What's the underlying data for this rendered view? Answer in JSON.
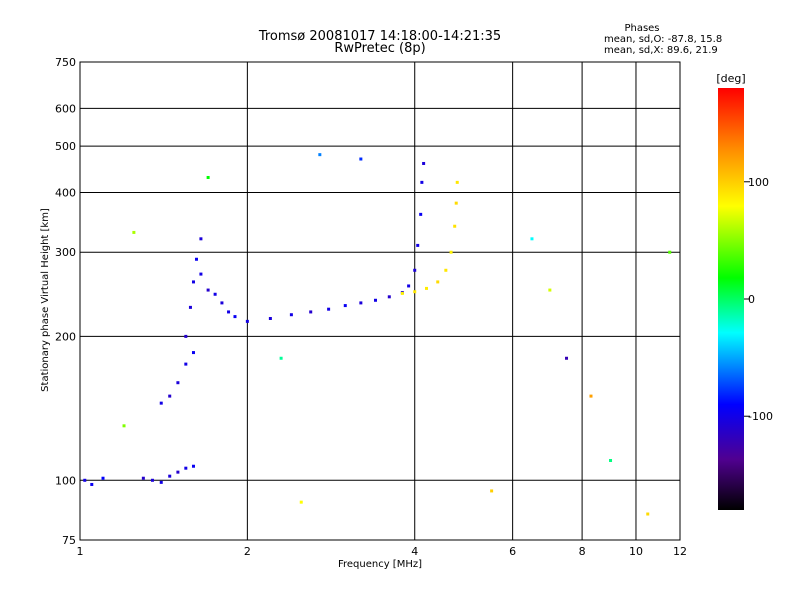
{
  "chart_data": {
    "type": "scatter",
    "title": "Tromsø 20081017 14:18:00-14:21:35",
    "subtitle": "RwPretec (8p)",
    "xlabel": "Frequency [MHz]",
    "ylabel": "Stationary phase Virtual Height [km]",
    "x_scale": "log",
    "y_scale": "log",
    "xlim": [
      1,
      12
    ],
    "ylim": [
      75,
      750
    ],
    "x_ticks": [
      1,
      2,
      4,
      6,
      8,
      10,
      12
    ],
    "y_ticks": [
      75,
      100,
      200,
      300,
      400,
      500,
      600,
      750
    ],
    "grid": true,
    "phase_info": {
      "heading": "Phases",
      "line1": "mean, sd,O: -87.8, 15.8",
      "line2": "mean, sd,X:  89.6, 21.9"
    },
    "colorbar": {
      "unit_label": "[deg]",
      "range": [
        -180,
        180
      ],
      "ticks": [
        100,
        0,
        -100
      ],
      "colors": [
        "#ff0000",
        "#ff8800",
        "#ffff00",
        "#00ff00",
        "#00ffff",
        "#0000ff",
        "#500090",
        "#000000"
      ]
    },
    "series": [
      {
        "color_mode": "phase",
        "points": [
          [
            1.02,
            100,
            -100
          ],
          [
            1.05,
            98,
            -95
          ],
          [
            1.1,
            101,
            -90
          ],
          [
            1.3,
            101,
            -110
          ],
          [
            1.35,
            100,
            -105
          ],
          [
            1.4,
            99,
            -100
          ],
          [
            1.45,
            102,
            -105
          ],
          [
            1.5,
            104,
            -110
          ],
          [
            1.55,
            106,
            -100
          ],
          [
            1.6,
            107,
            -95
          ],
          [
            1.4,
            145,
            -100
          ],
          [
            1.45,
            150,
            -110
          ],
          [
            1.5,
            160,
            -105
          ],
          [
            1.55,
            175,
            -100
          ],
          [
            1.6,
            185,
            -95
          ],
          [
            1.55,
            200,
            -110
          ],
          [
            1.58,
            230,
            -105
          ],
          [
            1.6,
            260,
            -100
          ],
          [
            1.62,
            290,
            -95
          ],
          [
            1.65,
            320,
            -105
          ],
          [
            1.65,
            270,
            -100
          ],
          [
            1.7,
            250,
            -110
          ],
          [
            1.75,
            245,
            -100
          ],
          [
            1.8,
            235,
            -105
          ],
          [
            1.85,
            225,
            -100
          ],
          [
            1.9,
            220,
            -95
          ],
          [
            2.0,
            215,
            -100
          ],
          [
            2.2,
            218,
            -105
          ],
          [
            2.4,
            222,
            -100
          ],
          [
            2.6,
            225,
            -110
          ],
          [
            2.8,
            228,
            -100
          ],
          [
            3.0,
            232,
            -95
          ],
          [
            3.2,
            235,
            -105
          ],
          [
            3.4,
            238,
            -100
          ],
          [
            3.6,
            242,
            -110
          ],
          [
            3.8,
            247,
            -105
          ],
          [
            3.9,
            255,
            -100
          ],
          [
            4.0,
            275,
            -105
          ],
          [
            4.05,
            310,
            -100
          ],
          [
            4.1,
            360,
            -95
          ],
          [
            4.12,
            420,
            -100
          ],
          [
            4.15,
            460,
            -105
          ],
          [
            3.8,
            246,
            85
          ],
          [
            4.0,
            248,
            90
          ],
          [
            4.2,
            252,
            88
          ],
          [
            4.4,
            260,
            95
          ],
          [
            4.55,
            275,
            90
          ],
          [
            4.65,
            300,
            85
          ],
          [
            4.72,
            340,
            92
          ],
          [
            4.75,
            380,
            95
          ],
          [
            4.77,
            420,
            90
          ],
          [
            1.2,
            130,
            50
          ],
          [
            1.25,
            330,
            60
          ],
          [
            1.7,
            430,
            20
          ],
          [
            2.3,
            180,
            -10
          ],
          [
            2.5,
            90,
            80
          ],
          [
            2.7,
            480,
            -60
          ],
          [
            3.2,
            470,
            -80
          ],
          [
            5.5,
            95,
            100
          ],
          [
            6.5,
            320,
            -30
          ],
          [
            7.0,
            250,
            70
          ],
          [
            7.5,
            180,
            -120
          ],
          [
            8.3,
            150,
            120
          ],
          [
            9.0,
            110,
            -5
          ],
          [
            10.5,
            85,
            95
          ],
          [
            11.5,
            300,
            40
          ]
        ]
      }
    ]
  }
}
